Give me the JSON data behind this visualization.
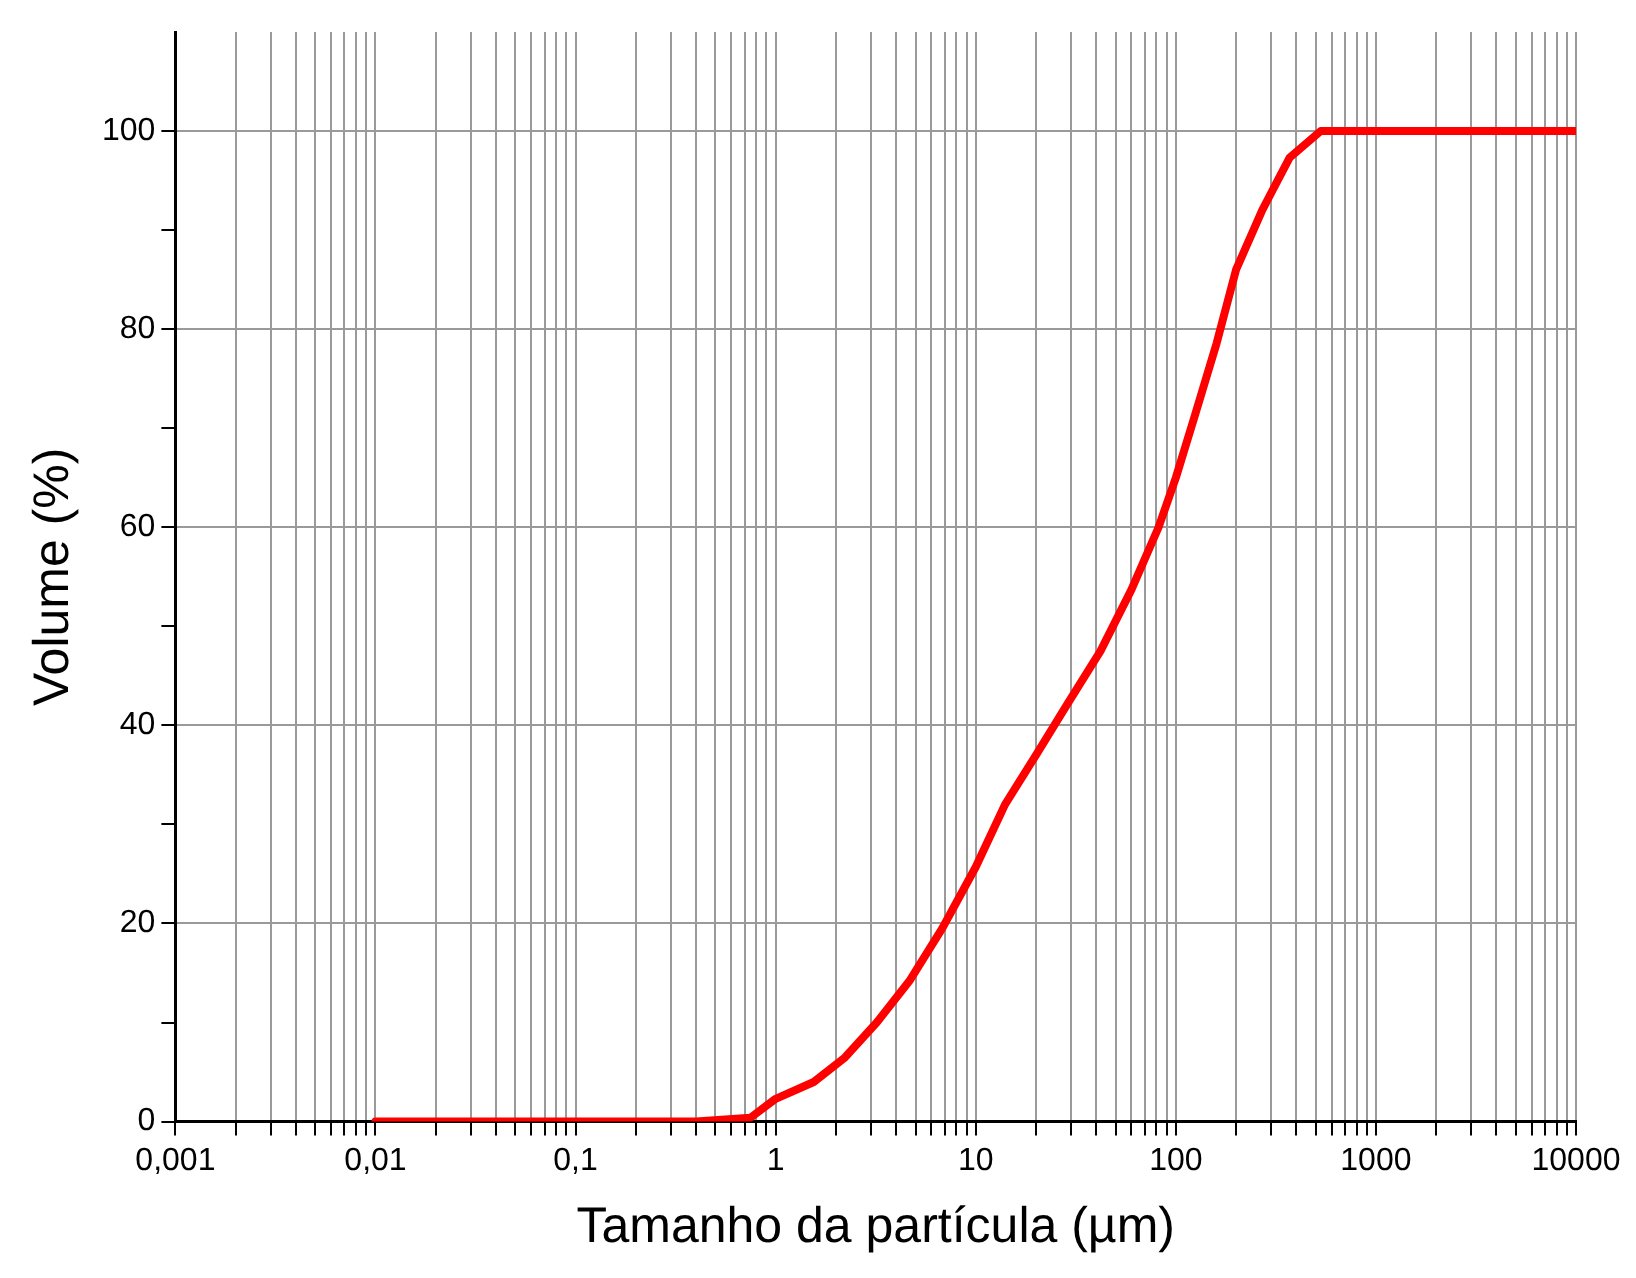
{
  "chart_data": {
    "type": "line",
    "xlabel": "Tamanho da partícula (µm)",
    "ylabel": "Volume (%)",
    "log": "x",
    "grid": true,
    "legend": false,
    "marker": "none",
    "line_style": "solid",
    "xlim": [
      0.001,
      10000
    ],
    "ylim": [
      0,
      110
    ],
    "xticks": [
      {
        "value": 0.001,
        "label": "0,001"
      },
      {
        "value": 0.002,
        "label": null
      },
      {
        "value": 0.003,
        "label": null
      },
      {
        "value": 0.004,
        "label": null
      },
      {
        "value": 0.005,
        "label": null
      },
      {
        "value": 0.006,
        "label": null
      },
      {
        "value": 0.007,
        "label": null
      },
      {
        "value": 0.008,
        "label": null
      },
      {
        "value": 0.009,
        "label": null
      },
      {
        "value": 0.01,
        "label": "0,01"
      },
      {
        "value": 0.02,
        "label": null
      },
      {
        "value": 0.03,
        "label": null
      },
      {
        "value": 0.04,
        "label": null
      },
      {
        "value": 0.05,
        "label": null
      },
      {
        "value": 0.06,
        "label": null
      },
      {
        "value": 0.07,
        "label": null
      },
      {
        "value": 0.08,
        "label": null
      },
      {
        "value": 0.09,
        "label": null
      },
      {
        "value": 0.1,
        "label": "0,1"
      },
      {
        "value": 0.2,
        "label": null
      },
      {
        "value": 0.3,
        "label": null
      },
      {
        "value": 0.4,
        "label": null
      },
      {
        "value": 0.5,
        "label": null
      },
      {
        "value": 0.6,
        "label": null
      },
      {
        "value": 0.7,
        "label": null
      },
      {
        "value": 0.8,
        "label": null
      },
      {
        "value": 0.9,
        "label": null
      },
      1,
      {
        "value": 2,
        "label": null
      },
      {
        "value": 3,
        "label": null
      },
      {
        "value": 4,
        "label": null
      },
      {
        "value": 5,
        "label": null
      },
      {
        "value": 6,
        "label": null
      },
      {
        "value": 7,
        "label": null
      },
      {
        "value": 8,
        "label": null
      },
      {
        "value": 9,
        "label": null
      },
      10,
      {
        "value": 20,
        "label": null
      },
      {
        "value": 30,
        "label": null
      },
      {
        "value": 40,
        "label": null
      },
      {
        "value": 50,
        "label": null
      },
      {
        "value": 60,
        "label": null
      },
      {
        "value": 70,
        "label": null
      },
      {
        "value": 80,
        "label": null
      },
      {
        "value": 90,
        "label": null
      },
      100,
      {
        "value": 200,
        "label": null
      },
      {
        "value": 300,
        "label": null
      },
      {
        "value": 400,
        "label": null
      },
      {
        "value": 500,
        "label": null
      },
      {
        "value": 600,
        "label": null
      },
      {
        "value": 700,
        "label": null
      },
      {
        "value": 800,
        "label": null
      },
      {
        "value": 900,
        "label": null
      },
      1000,
      {
        "value": 2000,
        "label": null
      },
      {
        "value": 3000,
        "label": null
      },
      {
        "value": 4000,
        "label": null
      },
      {
        "value": 5000,
        "label": null
      },
      {
        "value": 6000,
        "label": null
      },
      {
        "value": 7000,
        "label": null
      },
      {
        "value": 8000,
        "label": null
      },
      {
        "value": 9000,
        "label": null
      },
      10000
    ],
    "yticks": [
      0,
      {
        "value": 10,
        "label": null
      },
      20,
      {
        "value": 30,
        "label": null
      },
      40,
      {
        "value": 50,
        "label": null
      },
      60,
      {
        "value": 70,
        "label": null
      },
      80,
      {
        "value": 90,
        "label": null
      },
      100
    ],
    "series": [
      {
        "color": "#ff0000",
        "x": [
          0.01,
          0.1,
          0.4,
          0.75,
          1,
          1.55,
          2.2,
          3.2,
          4.7,
          6.8,
          10,
          14,
          20,
          29,
          42,
          60,
          82,
          100,
          125,
          160,
          200,
          270,
          370,
          530,
          1000,
          10000
        ],
        "values": [
          0,
          0,
          0,
          0.4,
          2.3,
          4,
          6.4,
          10,
          14.3,
          19.5,
          25.7,
          32,
          37,
          42.3,
          47.5,
          53.7,
          60,
          65,
          71.4,
          78.6,
          86,
          92,
          97.3,
          100,
          100,
          100
        ]
      }
    ]
  }
}
